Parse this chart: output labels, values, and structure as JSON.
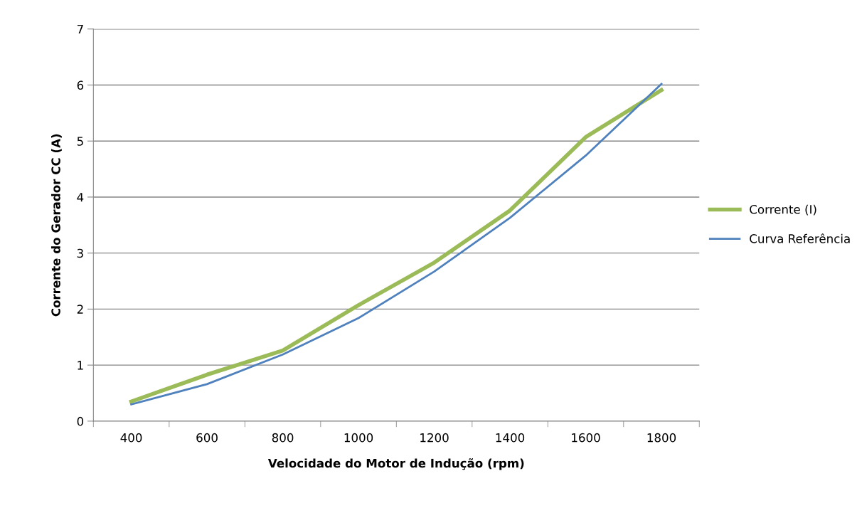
{
  "chart_data": {
    "type": "line",
    "xlabel": "Velocidade do Motor de Indução (rpm)",
    "ylabel": "Corrente do Gerador CC (A)",
    "categories": [
      "400",
      "600",
      "800",
      "1000",
      "1200",
      "1400",
      "1600",
      "1800"
    ],
    "series": [
      {
        "name": "Corrente (I)",
        "color": "#9bbb59",
        "values": [
          0.35,
          0.83,
          1.26,
          2.07,
          2.83,
          3.76,
          5.07,
          5.91
        ]
      },
      {
        "name": "Curva Referência",
        "color": "#4f81bd",
        "values": [
          0.3,
          0.66,
          1.19,
          1.84,
          2.67,
          3.63,
          4.74,
          6.02
        ]
      }
    ],
    "ylim": [
      0,
      7
    ],
    "yticks": [
      0,
      1,
      2,
      3,
      4,
      5,
      6,
      7
    ],
    "grid": "y",
    "legend": "right",
    "marker": "none",
    "line_style": "solid"
  }
}
